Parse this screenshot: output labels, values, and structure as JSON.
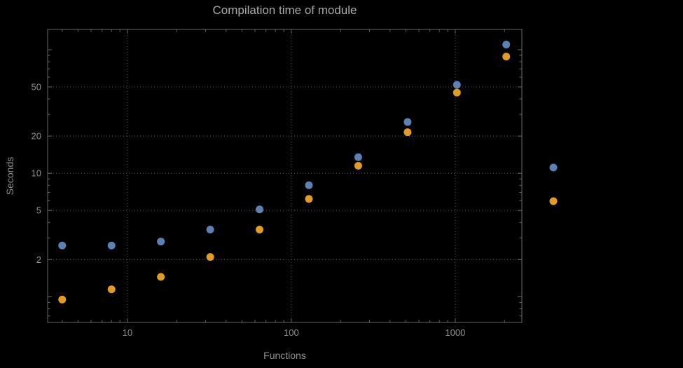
{
  "chart_data": {
    "type": "scatter",
    "title": "Compilation time of module",
    "xlabel": "Functions",
    "ylabel": "Seconds",
    "xscale": "log",
    "yscale": "log",
    "xlim": [
      3.26,
      2550
    ],
    "ylim": [
      0.62,
      146
    ],
    "x_ticks": [
      10,
      100,
      1000
    ],
    "y_ticks": [
      2,
      5,
      10,
      20,
      50
    ],
    "grid": true,
    "grid_style": "dotted",
    "x": [
      4,
      8,
      16,
      32,
      64,
      128,
      256,
      512,
      1024,
      2048
    ],
    "series": [
      {
        "name": "blue",
        "color": "#5e81b5",
        "values": [
          2.6,
          2.6,
          2.8,
          3.5,
          5.1,
          8.0,
          13.5,
          26,
          52,
          110
        ]
      },
      {
        "name": "orange",
        "color": "#e19c24",
        "values": [
          0.95,
          1.15,
          1.45,
          2.1,
          3.5,
          6.2,
          11.5,
          21.5,
          45,
          88
        ]
      }
    ],
    "legend": {
      "position": "right-outside",
      "markers": [
        {
          "name": "blue",
          "color": "#5e81b5",
          "label": ""
        },
        {
          "name": "orange",
          "color": "#e19c24",
          "label": ""
        }
      ]
    }
  },
  "colors": {
    "background": "#000000",
    "title_text": "#a9a9a9",
    "text": "#8f8f8f",
    "frame": "#666666",
    "grid": "#5a5a5a"
  }
}
